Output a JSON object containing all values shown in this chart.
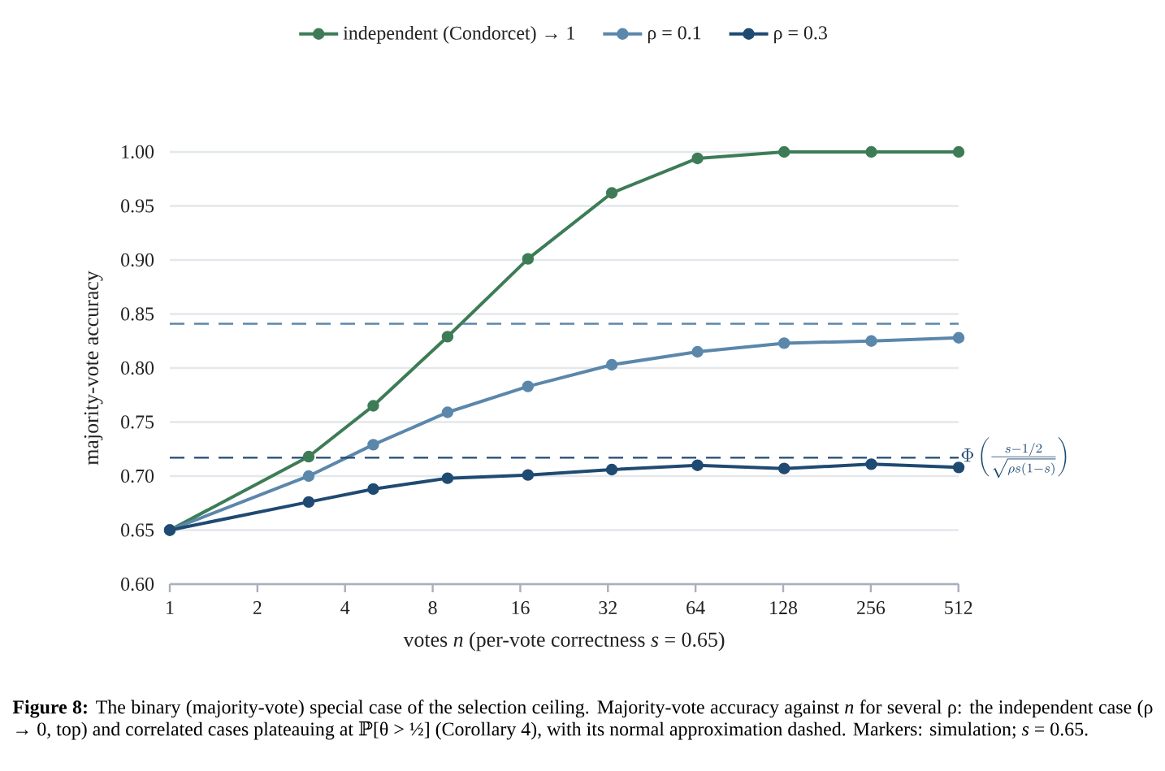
{
  "chart_data": {
    "type": "line",
    "xlabel": "votes  *n*  (per-vote correctness *s* = 0.65)",
    "ylabel": "majority-vote accuracy",
    "x": [
      1,
      3,
      5,
      9,
      17,
      33,
      65,
      129,
      257,
      513
    ],
    "series": [
      {
        "name": "independent (Condorcet)  → 1",
        "color": "#3d7c56",
        "values": [
          0.65,
          0.718,
          0.765,
          0.829,
          0.901,
          0.962,
          0.994,
          1.0,
          1.0,
          1.0
        ]
      },
      {
        "name": "ρ = 0.1",
        "color": "#5b87ab",
        "values": [
          0.65,
          0.7,
          0.729,
          0.759,
          0.783,
          0.803,
          0.815,
          0.823,
          0.825,
          0.828
        ]
      },
      {
        "name": "ρ = 0.3",
        "color": "#1f4a72",
        "values": [
          0.65,
          0.676,
          0.688,
          0.698,
          0.701,
          0.706,
          0.71,
          0.707,
          0.711,
          0.708
        ]
      }
    ],
    "xlim": [
      1,
      513
    ],
    "xticks": [
      1,
      2,
      4,
      8,
      16,
      32,
      64,
      128,
      256,
      512
    ],
    "ylim": [
      0.6,
      1.0
    ],
    "yticks": [
      {
        "value": 0.6,
        "label": "0.60"
      },
      {
        "value": 0.65,
        "label": "0.65"
      },
      {
        "value": 0.7,
        "label": "0.70"
      },
      {
        "value": 0.75,
        "label": "0.75"
      },
      {
        "value": 0.8,
        "label": "0.80"
      },
      {
        "value": 0.85,
        "label": "0.85"
      },
      {
        "value": 0.9,
        "label": "0.90"
      },
      {
        "value": 0.95,
        "label": "0.95"
      },
      {
        "value": 1.0,
        "label": "1.00"
      }
    ],
    "log": "x",
    "grid": "y",
    "legend": "top",
    "marker": "circle",
    "line_style": "solid",
    "ref_lines": [
      {
        "axis": "y",
        "value": 0.841,
        "color": "#5b87ab",
        "line_style": "dashed"
      },
      {
        "axis": "y",
        "value": 0.717,
        "color": "#1f4a72",
        "line_style": "dashed",
        "label": "\\Phi\\left(\\frac{s-1/2}{\\sqrt{\\rho s(1-s)}}\\right)"
      }
    ],
    "annotations": [
      "**Figure 8:** The binary (majority-vote) special case of the selection ceiling. Majority-vote accuracy against *n* for several ρ: the independent case (ρ → 0, top) and correlated cases plateauing at ℙ[θ > ½] (Corollary 4), with its normal approximation dashed. Markers: simulation; *s* = 0.65."
    ]
  }
}
